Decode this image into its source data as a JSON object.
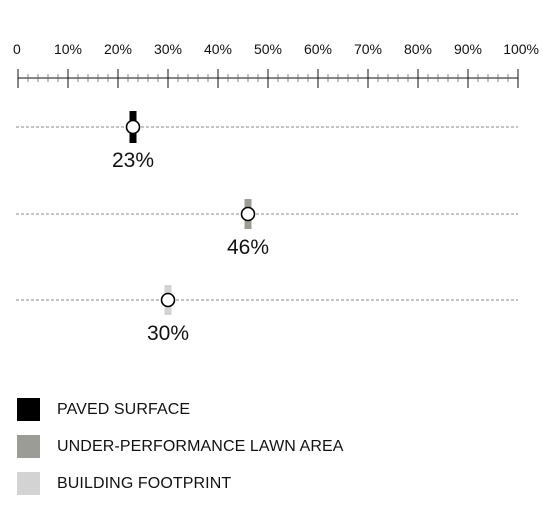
{
  "chart_data": {
    "type": "dot",
    "title": "",
    "xlabel": "",
    "ylabel": "",
    "xlim": [
      0,
      100
    ],
    "x_ticks": [
      "0",
      "10%",
      "20%",
      "30%",
      "40%",
      "50%",
      "60%",
      "70%",
      "80%",
      "90%",
      "100%"
    ],
    "minor_tick_step": 2,
    "grid": false,
    "legend_position": "bottom-left",
    "series": [
      {
        "name": "PAVED SURFACE",
        "value": 23,
        "label": "23%",
        "color": "#000000"
      },
      {
        "name": "UNDER-PERFORMANCE LAWN AREA",
        "value": 46,
        "label": "46%",
        "color": "#9a9c95"
      },
      {
        "name": "BUILDING FOOTPRINT",
        "value": 30,
        "label": "30%",
        "color": "#d3d3d3"
      }
    ]
  }
}
